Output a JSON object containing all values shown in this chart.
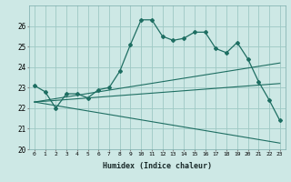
{
  "xlabel": "Humidex (Indice chaleur)",
  "bg_color": "#cde8e5",
  "grid_color": "#9ec8c4",
  "line_color": "#1e6e62",
  "xlim": [
    -0.5,
    23.5
  ],
  "ylim": [
    20,
    27
  ],
  "yticks": [
    20,
    21,
    22,
    23,
    24,
    25,
    26
  ],
  "xticks": [
    0,
    1,
    2,
    3,
    4,
    5,
    6,
    7,
    8,
    9,
    10,
    11,
    12,
    13,
    14,
    15,
    16,
    17,
    18,
    19,
    20,
    21,
    22,
    23
  ],
  "series1_x": [
    0,
    1,
    2,
    3,
    4,
    5,
    6,
    7,
    8,
    9,
    10,
    11,
    12,
    13,
    14,
    15,
    16,
    17,
    18,
    19,
    20,
    21,
    22,
    23
  ],
  "series1_y": [
    23.1,
    22.8,
    22.0,
    22.7,
    22.7,
    22.5,
    22.9,
    23.0,
    23.8,
    25.1,
    26.3,
    26.3,
    25.5,
    25.3,
    25.4,
    25.7,
    25.7,
    24.9,
    24.7,
    25.2,
    24.4,
    23.3,
    22.4,
    21.4
  ],
  "series2_x": [
    0,
    23
  ],
  "series2_y": [
    22.3,
    24.2
  ],
  "series3_x": [
    0,
    23
  ],
  "series3_y": [
    22.3,
    23.2
  ],
  "series4_x": [
    0,
    23
  ],
  "series4_y": [
    22.3,
    20.3
  ]
}
